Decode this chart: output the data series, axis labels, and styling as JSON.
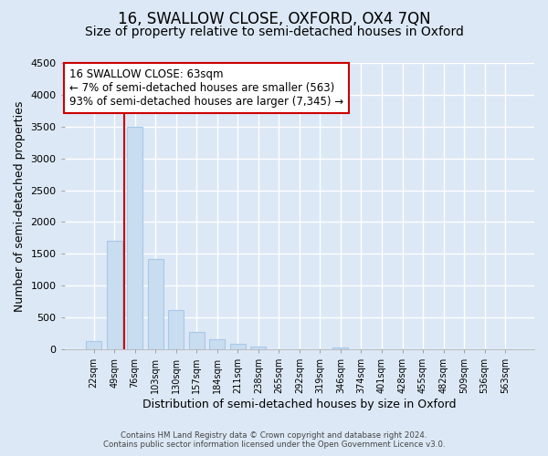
{
  "title": "16, SWALLOW CLOSE, OXFORD, OX4 7QN",
  "subtitle": "Size of property relative to semi-detached houses in Oxford",
  "xlabel": "Distribution of semi-detached houses by size in Oxford",
  "ylabel": "Number of semi-detached properties",
  "bin_labels": [
    "22sqm",
    "49sqm",
    "76sqm",
    "103sqm",
    "130sqm",
    "157sqm",
    "184sqm",
    "211sqm",
    "238sqm",
    "265sqm",
    "292sqm",
    "319sqm",
    "346sqm",
    "374sqm",
    "401sqm",
    "428sqm",
    "455sqm",
    "482sqm",
    "509sqm",
    "536sqm",
    "563sqm"
  ],
  "bar_values": [
    130,
    1700,
    3500,
    1420,
    620,
    270,
    160,
    90,
    50,
    0,
    0,
    0,
    35,
    0,
    0,
    0,
    0,
    0,
    0,
    0,
    0
  ],
  "bar_color": "#c9ddf0",
  "bar_edge_color": "#a8c8e8",
  "annotation_line1": "16 SWALLOW CLOSE: 63sqm",
  "annotation_line2": "← 7% of semi-detached houses are smaller (563)",
  "annotation_line3": "93% of semi-detached houses are larger (7,345) →",
  "marker_line_color": "#cc0000",
  "marker_box_color": "#cc0000",
  "ylim": [
    0,
    4500
  ],
  "yticks": [
    0,
    500,
    1000,
    1500,
    2000,
    2500,
    3000,
    3500,
    4000,
    4500
  ],
  "footer1": "Contains HM Land Registry data © Crown copyright and database right 2024.",
  "footer2": "Contains public sector information licensed under the Open Government Licence v3.0.",
  "bg_color": "#dce8f5",
  "plot_bg_color": "#dce8f5",
  "grid_color": "#ffffff",
  "title_fontsize": 12,
  "subtitle_fontsize": 10
}
